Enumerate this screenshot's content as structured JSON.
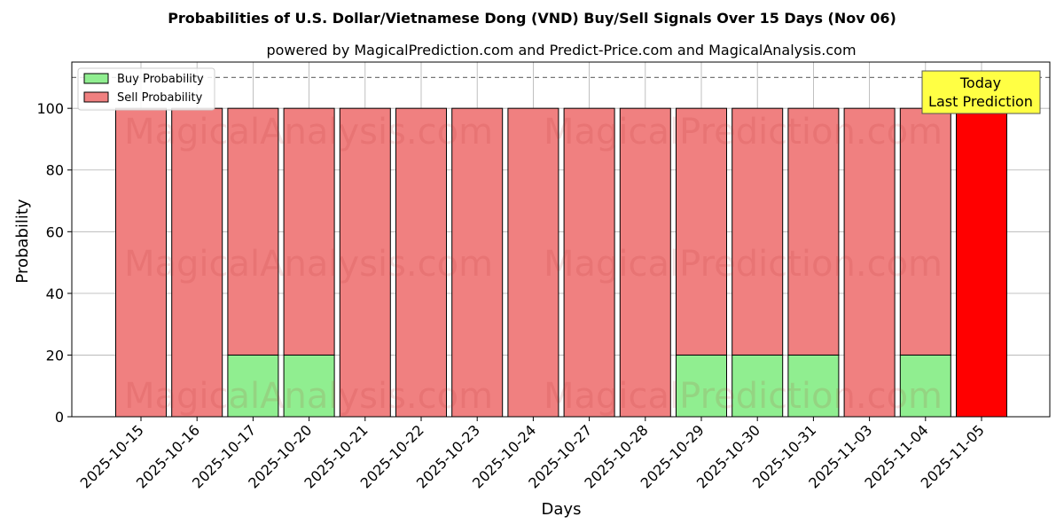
{
  "chart_data": {
    "type": "bar",
    "title": "Probabilities of U.S. Dollar/Vietnamese Dong (VND) Buy/Sell Signals Over 15 Days (Nov 06)",
    "subtitle": "powered by MagicalPrediction.com and Predict-Price.com and MagicalAnalysis.com",
    "xlabel": "Days",
    "ylabel": "Probability",
    "ylim": [
      0,
      115
    ],
    "yticks": [
      0,
      20,
      40,
      60,
      80,
      100
    ],
    "reference_line": 110,
    "grid": true,
    "legend_position": "top-left",
    "stacked": true,
    "categories": [
      "2025-10-15",
      "2025-10-16",
      "2025-10-17",
      "2025-10-20",
      "2025-10-21",
      "2025-10-22",
      "2025-10-23",
      "2025-10-24",
      "2025-10-27",
      "2025-10-28",
      "2025-10-29",
      "2025-10-30",
      "2025-10-31",
      "2025-11-03",
      "2025-11-04",
      "2025-11-05"
    ],
    "series": [
      {
        "name": "Buy Probability",
        "color": "#90ee90",
        "values": [
          0,
          0,
          20,
          20,
          0,
          0,
          0,
          0,
          0,
          0,
          20,
          20,
          20,
          0,
          20,
          0
        ]
      },
      {
        "name": "Sell Probability",
        "color": "#f08080",
        "values": [
          100,
          100,
          80,
          80,
          100,
          100,
          100,
          100,
          100,
          100,
          80,
          80,
          80,
          100,
          80,
          100
        ]
      }
    ],
    "highlight": {
      "index": 15,
      "color": "#ff0000"
    },
    "annotation": {
      "lines": [
        "Today",
        "Last Prediction"
      ],
      "background": "#ffff44"
    },
    "watermarks": [
      "MagicalAnalysis.com",
      "MagicalPrediction.com"
    ]
  }
}
